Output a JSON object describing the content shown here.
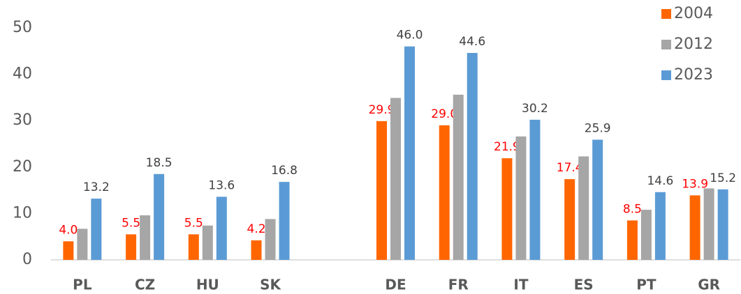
{
  "chart_data": {
    "type": "bar",
    "categories": [
      "PL",
      "CZ",
      "HU",
      "SK",
      null,
      "DE",
      "FR",
      "IT",
      "ES",
      "PT",
      "GR"
    ],
    "series": [
      {
        "name": "2004",
        "color": "#ff6600",
        "label_color": "#ff0000",
        "values": [
          4.0,
          5.5,
          5.5,
          4.2,
          null,
          29.9,
          29.0,
          21.9,
          17.4,
          8.5,
          13.9
        ],
        "value_labels": [
          "4.0",
          "5.5",
          "5.5",
          "4.2",
          null,
          "29.9",
          "29.0",
          "21.9",
          "17.4",
          "8.5",
          "13.9"
        ]
      },
      {
        "name": "2012",
        "color": "#a6a6a6",
        "values": [
          6.7,
          9.6,
          7.4,
          8.8,
          null,
          34.9,
          35.6,
          26.6,
          22.3,
          10.8,
          15.4
        ]
      },
      {
        "name": "2023",
        "color": "#5b9bd5",
        "label_color": "#404040",
        "values": [
          13.2,
          18.5,
          13.6,
          16.8,
          null,
          46.0,
          44.6,
          30.2,
          25.9,
          14.6,
          15.2
        ],
        "value_labels": [
          "13.2",
          "18.5",
          "13.6",
          "16.8",
          null,
          "46.0",
          "44.6",
          "30.2",
          "25.9",
          "14.6",
          "15.2"
        ]
      }
    ],
    "ylim": [
      0,
      50
    ],
    "yticks": [
      0,
      10,
      20,
      30,
      40,
      50
    ],
    "grid": false,
    "legend": "top-right"
  }
}
